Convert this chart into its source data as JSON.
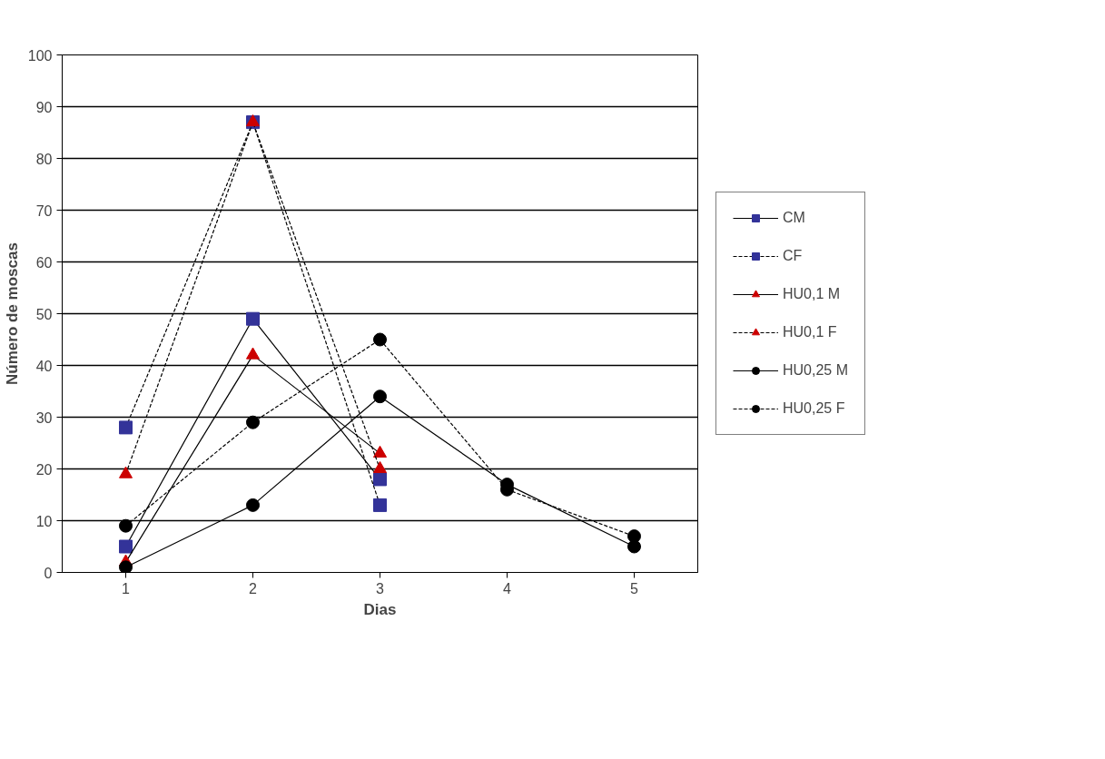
{
  "chart_data": {
    "type": "line",
    "xlabel": "Dias",
    "ylabel": "Número de moscas",
    "categories": [
      "1",
      "2",
      "3",
      "4",
      "5"
    ],
    "series": [
      {
        "name": "CM",
        "color": "#333399",
        "marker": "square",
        "line_style": "solid",
        "values": [
          5,
          49,
          18,
          null,
          null
        ]
      },
      {
        "name": "CF",
        "color": "#333399",
        "marker": "square",
        "line_style": "dashed",
        "values": [
          28,
          87,
          13,
          null,
          null
        ]
      },
      {
        "name": "HU0,1 M",
        "color": "#cc0000",
        "marker": "triangle",
        "line_style": "solid",
        "values": [
          2,
          42,
          23,
          null,
          null
        ]
      },
      {
        "name": "HU0,1 F",
        "color": "#cc0000",
        "marker": "triangle",
        "line_style": "dashed",
        "values": [
          19,
          87,
          20,
          null,
          null
        ]
      },
      {
        "name": "HU0,25 M",
        "color": "#000000",
        "marker": "circle",
        "line_style": "solid",
        "values": [
          1,
          13,
          34,
          17,
          5
        ]
      },
      {
        "name": "HU0,25 F",
        "color": "#000000",
        "marker": "circle",
        "line_style": "dashed",
        "values": [
          9,
          29,
          45,
          16,
          7
        ]
      }
    ],
    "ylim": [
      0,
      100
    ],
    "yticks": [
      0,
      10,
      20,
      30,
      40,
      50,
      60,
      70,
      80,
      90,
      100
    ],
    "grid": "y",
    "legend": "right"
  }
}
